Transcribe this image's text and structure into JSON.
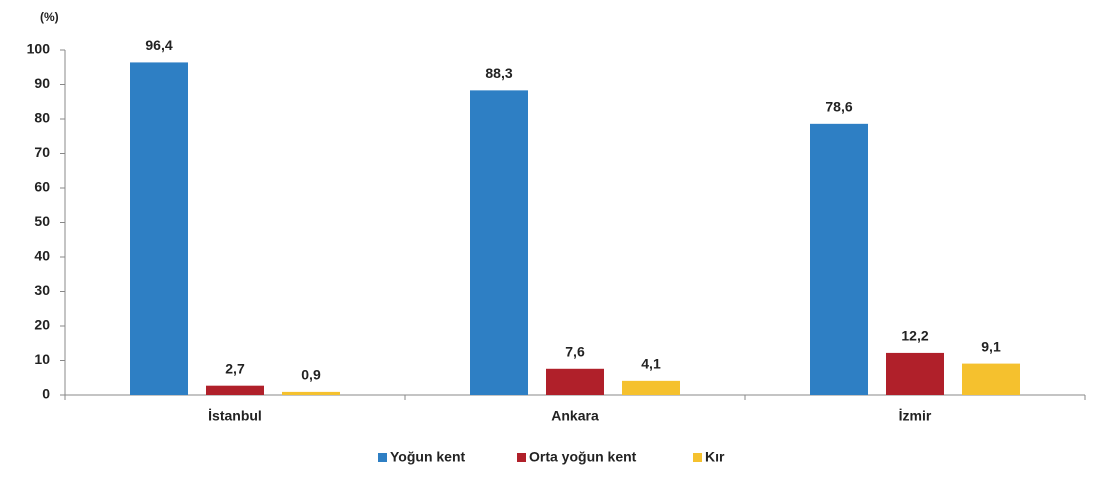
{
  "chart_data": {
    "type": "bar",
    "y_label": "(%)",
    "categories": [
      "İstanbul",
      "Ankara",
      "İzmir"
    ],
    "series": [
      {
        "name": "Yoğun kent",
        "color": "#2e7fc4",
        "values": [
          96.4,
          88.3,
          78.6
        ],
        "value_labels": [
          "96,4",
          "88,3",
          "78,6"
        ]
      },
      {
        "name": "Orta yoğun kent",
        "color": "#b0202a",
        "values": [
          2.7,
          7.6,
          12.2
        ],
        "value_labels": [
          "2,7",
          "7,6",
          "12,2"
        ]
      },
      {
        "name": "Kır",
        "color": "#f5c12e",
        "values": [
          0.9,
          4.1,
          9.1
        ],
        "value_labels": [
          "0,9",
          "4,1",
          "9,1"
        ]
      }
    ],
    "ylim": [
      0,
      100
    ],
    "yticks": [
      0,
      10,
      20,
      30,
      40,
      50,
      60,
      70,
      80,
      90,
      100
    ],
    "grid": false,
    "legend": "bottom"
  }
}
